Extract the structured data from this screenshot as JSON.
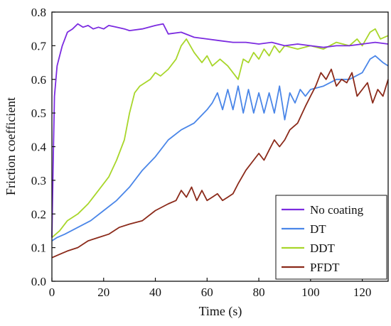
{
  "chart_data": {
    "type": "line",
    "title": "",
    "xlabel": "Time (s)",
    "ylabel": "Friction coefficient",
    "xlim": [
      0,
      130
    ],
    "ylim": [
      0.0,
      0.8
    ],
    "xticks": [
      "0",
      "20",
      "40",
      "60",
      "80",
      "100",
      "120"
    ],
    "yticks": [
      "0.0",
      "0.1",
      "0.2",
      "0.3",
      "0.4",
      "0.5",
      "0.6",
      "0.7",
      "0.8"
    ],
    "grid": false,
    "legend_position": "bottom-right",
    "series": [
      {
        "name": "No coating",
        "color": "#7b2be0",
        "x": [
          0,
          0.5,
          1,
          2,
          3,
          4,
          5,
          6,
          8,
          10,
          12,
          14,
          16,
          18,
          20,
          22,
          25,
          28,
          30,
          35,
          40,
          43,
          45,
          50,
          55,
          60,
          65,
          70,
          75,
          80,
          85,
          90,
          95,
          100,
          105,
          110,
          115,
          120,
          125,
          130
        ],
        "y": [
          0.13,
          0.35,
          0.55,
          0.64,
          0.67,
          0.7,
          0.72,
          0.74,
          0.75,
          0.765,
          0.755,
          0.76,
          0.75,
          0.755,
          0.75,
          0.76,
          0.755,
          0.75,
          0.745,
          0.75,
          0.76,
          0.765,
          0.735,
          0.74,
          0.725,
          0.72,
          0.715,
          0.71,
          0.71,
          0.705,
          0.71,
          0.7,
          0.705,
          0.7,
          0.695,
          0.7,
          0.7,
          0.705,
          0.71,
          0.705
        ]
      },
      {
        "name": "DT",
        "color": "#4a86e8",
        "x": [
          0,
          2,
          5,
          10,
          15,
          20,
          25,
          30,
          35,
          40,
          45,
          50,
          55,
          60,
          62,
          64,
          66,
          68,
          70,
          72,
          74,
          76,
          78,
          80,
          82,
          84,
          86,
          88,
          90,
          92,
          94,
          96,
          98,
          100,
          105,
          110,
          115,
          120,
          123,
          125,
          128,
          130
        ],
        "y": [
          0.12,
          0.13,
          0.14,
          0.16,
          0.18,
          0.21,
          0.24,
          0.28,
          0.33,
          0.37,
          0.42,
          0.45,
          0.47,
          0.51,
          0.53,
          0.56,
          0.51,
          0.57,
          0.51,
          0.58,
          0.5,
          0.57,
          0.5,
          0.56,
          0.5,
          0.56,
          0.5,
          0.58,
          0.48,
          0.56,
          0.53,
          0.57,
          0.55,
          0.57,
          0.58,
          0.6,
          0.6,
          0.62,
          0.66,
          0.67,
          0.65,
          0.64
        ]
      },
      {
        "name": "DDT",
        "color": "#a8d62a",
        "x": [
          0,
          3,
          6,
          10,
          14,
          18,
          22,
          25,
          28,
          30,
          32,
          34,
          36,
          38,
          40,
          42,
          45,
          48,
          50,
          52,
          55,
          58,
          60,
          62,
          65,
          68,
          70,
          72,
          74,
          76,
          78,
          80,
          82,
          84,
          86,
          88,
          90,
          95,
          100,
          105,
          110,
          115,
          118,
          120,
          123,
          125,
          127,
          130
        ],
        "y": [
          0.13,
          0.15,
          0.18,
          0.2,
          0.23,
          0.27,
          0.31,
          0.36,
          0.42,
          0.5,
          0.56,
          0.58,
          0.59,
          0.6,
          0.62,
          0.61,
          0.63,
          0.66,
          0.7,
          0.72,
          0.68,
          0.65,
          0.67,
          0.64,
          0.66,
          0.64,
          0.62,
          0.6,
          0.66,
          0.65,
          0.68,
          0.66,
          0.69,
          0.67,
          0.7,
          0.68,
          0.7,
          0.69,
          0.7,
          0.69,
          0.71,
          0.7,
          0.72,
          0.7,
          0.74,
          0.75,
          0.72,
          0.73
        ]
      },
      {
        "name": "PFDT",
        "color": "#8b2a1a",
        "x": [
          0,
          3,
          6,
          10,
          14,
          18,
          22,
          26,
          30,
          35,
          40,
          45,
          48,
          50,
          52,
          54,
          56,
          58,
          60,
          62,
          64,
          66,
          68,
          70,
          72,
          75,
          78,
          80,
          82,
          84,
          86,
          88,
          90,
          92,
          95,
          98,
          100,
          102,
          104,
          106,
          108,
          110,
          112,
          114,
          116,
          118,
          120,
          122,
          124,
          126,
          128,
          130
        ],
        "y": [
          0.07,
          0.08,
          0.09,
          0.1,
          0.12,
          0.13,
          0.14,
          0.16,
          0.17,
          0.18,
          0.21,
          0.23,
          0.24,
          0.27,
          0.25,
          0.28,
          0.24,
          0.27,
          0.24,
          0.25,
          0.26,
          0.24,
          0.25,
          0.26,
          0.29,
          0.33,
          0.36,
          0.38,
          0.36,
          0.39,
          0.42,
          0.4,
          0.42,
          0.45,
          0.47,
          0.52,
          0.55,
          0.58,
          0.62,
          0.6,
          0.63,
          0.58,
          0.6,
          0.59,
          0.62,
          0.55,
          0.57,
          0.59,
          0.53,
          0.57,
          0.55,
          0.6
        ]
      }
    ]
  }
}
